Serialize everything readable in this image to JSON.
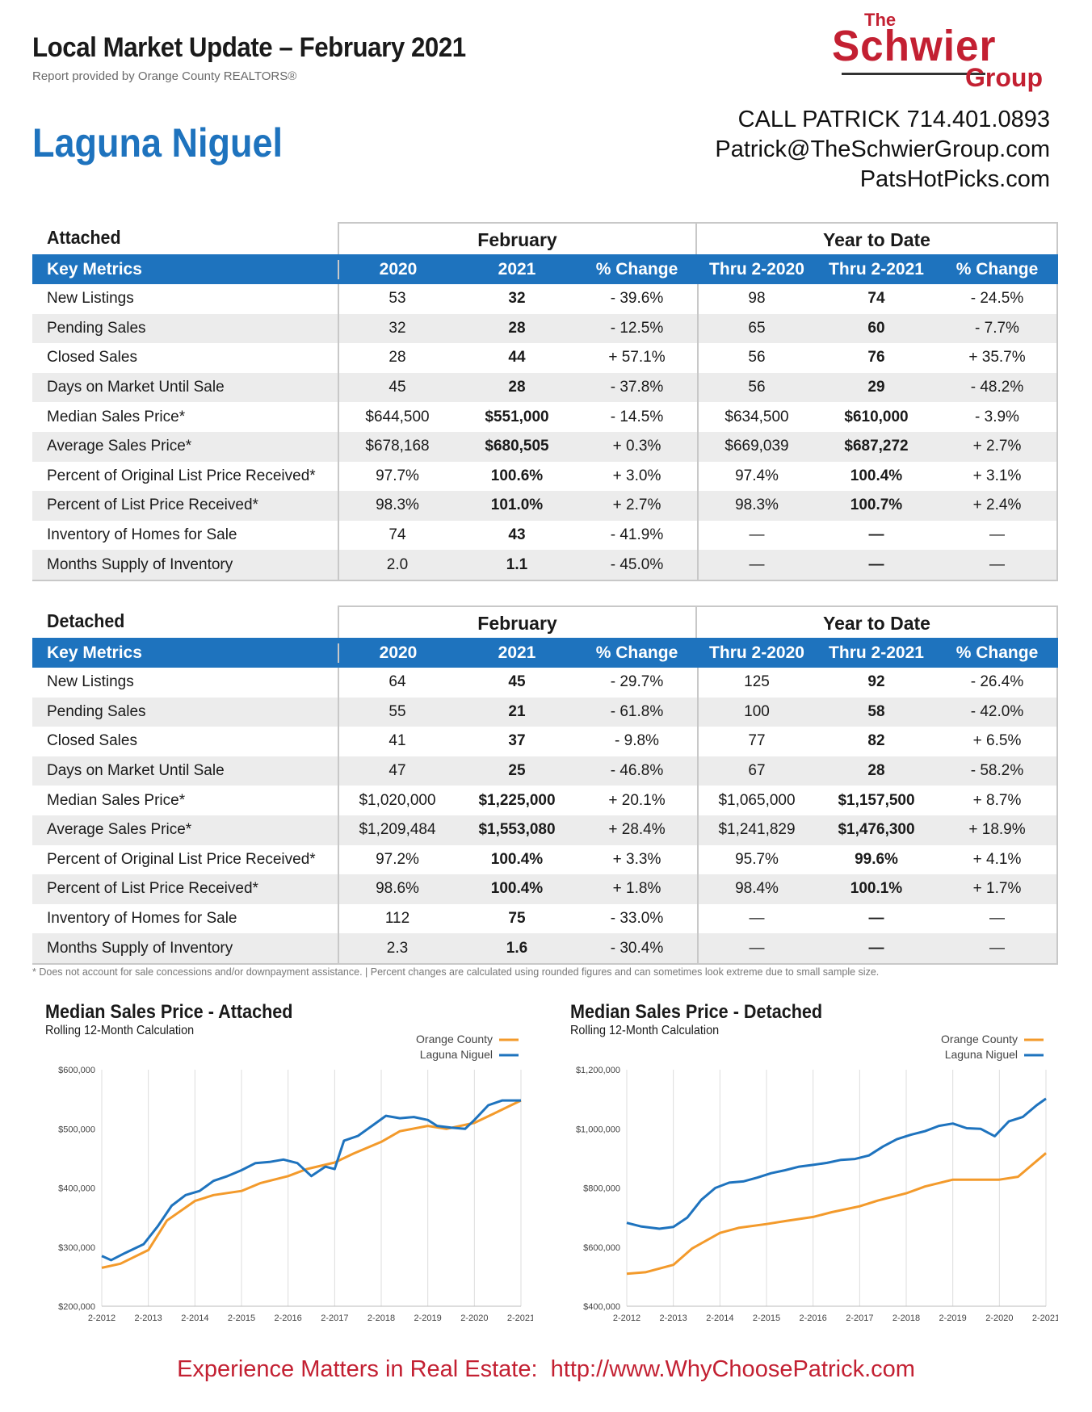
{
  "header": {
    "title": "Local Market Update – February 2021",
    "subtitle": "Report provided by Orange County REALTORS®",
    "city": "Laguna Niguel",
    "logo": {
      "the": "The",
      "name": "Schwier",
      "group": "Group"
    },
    "contact": [
      "CALL PATRICK 714.401.0893",
      "Patrick@TheSchwierGroup.com",
      "PatsHotPicks.com"
    ]
  },
  "tables": [
    {
      "section": "Attached",
      "group_feb": "February",
      "group_ytd": "Year to Date",
      "columns": [
        "Key Metrics",
        "2020",
        "2021",
        "% Change",
        "Thru 2-2020",
        "Thru 2-2021",
        "% Change"
      ],
      "rows": [
        [
          "New Listings",
          "53",
          "32",
          "- 39.6%",
          "98",
          "74",
          "- 24.5%"
        ],
        [
          "Pending Sales",
          "32",
          "28",
          "- 12.5%",
          "65",
          "60",
          "- 7.7%"
        ],
        [
          "Closed Sales",
          "28",
          "44",
          "+ 57.1%",
          "56",
          "76",
          "+ 35.7%"
        ],
        [
          "Days on Market Until Sale",
          "45",
          "28",
          "- 37.8%",
          "56",
          "29",
          "- 48.2%"
        ],
        [
          "Median Sales Price*",
          "$644,500",
          "$551,000",
          "- 14.5%",
          "$634,500",
          "$610,000",
          "- 3.9%"
        ],
        [
          "Average Sales Price*",
          "$678,168",
          "$680,505",
          "+ 0.3%",
          "$669,039",
          "$687,272",
          "+ 2.7%"
        ],
        [
          "Percent of Original List Price Received*",
          "97.7%",
          "100.6%",
          "+ 3.0%",
          "97.4%",
          "100.4%",
          "+ 3.1%"
        ],
        [
          "Percent of List Price Received*",
          "98.3%",
          "101.0%",
          "+ 2.7%",
          "98.3%",
          "100.7%",
          "+ 2.4%"
        ],
        [
          "Inventory of Homes for Sale",
          "74",
          "43",
          "- 41.9%",
          "—",
          "—",
          "—"
        ],
        [
          "Months Supply of Inventory",
          "2.0",
          "1.1",
          "- 45.0%",
          "—",
          "—",
          "—"
        ]
      ]
    },
    {
      "section": "Detached",
      "group_feb": "February",
      "group_ytd": "Year to Date",
      "columns": [
        "Key Metrics",
        "2020",
        "2021",
        "% Change",
        "Thru 2-2020",
        "Thru 2-2021",
        "% Change"
      ],
      "rows": [
        [
          "New Listings",
          "64",
          "45",
          "- 29.7%",
          "125",
          "92",
          "- 26.4%"
        ],
        [
          "Pending Sales",
          "55",
          "21",
          "- 61.8%",
          "100",
          "58",
          "- 42.0%"
        ],
        [
          "Closed Sales",
          "41",
          "37",
          "- 9.8%",
          "77",
          "82",
          "+ 6.5%"
        ],
        [
          "Days on Market Until Sale",
          "47",
          "25",
          "- 46.8%",
          "67",
          "28",
          "- 58.2%"
        ],
        [
          "Median Sales Price*",
          "$1,020,000",
          "$1,225,000",
          "+ 20.1%",
          "$1,065,000",
          "$1,157,500",
          "+ 8.7%"
        ],
        [
          "Average Sales Price*",
          "$1,209,484",
          "$1,553,080",
          "+ 28.4%",
          "$1,241,829",
          "$1,476,300",
          "+ 18.9%"
        ],
        [
          "Percent of Original List Price Received*",
          "97.2%",
          "100.4%",
          "+ 3.3%",
          "95.7%",
          "99.6%",
          "+ 4.1%"
        ],
        [
          "Percent of List Price Received*",
          "98.6%",
          "100.4%",
          "+ 1.8%",
          "98.4%",
          "100.1%",
          "+ 1.7%"
        ],
        [
          "Inventory of Homes for Sale",
          "112",
          "75",
          "- 33.0%",
          "—",
          "—",
          "—"
        ],
        [
          "Months Supply of Inventory",
          "2.3",
          "1.6",
          "- 30.4%",
          "—",
          "—",
          "—"
        ]
      ]
    }
  ],
  "footnote": "* Does not account for sale concessions and/or downpayment assistance.  |  Percent changes are calculated using rounded figures and can sometimes look extreme due to small sample size.",
  "chart_data": [
    {
      "type": "line",
      "title": "Median Sales Price - Attached",
      "subtitle": "Rolling 12-Month Calculation",
      "x_ticks": [
        "2-2012",
        "2-2013",
        "2-2014",
        "2-2015",
        "2-2016",
        "2-2017",
        "2-2018",
        "2-2019",
        "2-2020",
        "2-2021"
      ],
      "y_ticks": [
        "$200,000",
        "$300,000",
        "$400,000",
        "$500,000",
        "$600,000"
      ],
      "ylim": [
        200000,
        600000
      ],
      "legend_position": "top-right",
      "colors": {
        "Orange County": "#f39a2b",
        "Laguna Niguel": "#1e73be"
      },
      "series": [
        {
          "name": "Orange County",
          "x": [
            2012.1,
            2012.5,
            2013.1,
            2013.5,
            2014.1,
            2014.5,
            2015.1,
            2015.5,
            2016.1,
            2016.5,
            2017.1,
            2017.5,
            2018.1,
            2018.5,
            2019.1,
            2019.5,
            2020.1,
            2020.5,
            2021.1
          ],
          "values": [
            265000,
            272000,
            295000,
            345000,
            378000,
            388000,
            395000,
            408000,
            420000,
            432000,
            443000,
            458000,
            478000,
            496000,
            505000,
            500000,
            510000,
            525000,
            548000
          ]
        },
        {
          "name": "Laguna Niguel",
          "x": [
            2012.1,
            2012.3,
            2012.6,
            2013.0,
            2013.3,
            2013.6,
            2013.9,
            2014.2,
            2014.5,
            2014.8,
            2015.1,
            2015.4,
            2015.7,
            2016.0,
            2016.3,
            2016.6,
            2016.9,
            2017.1,
            2017.3,
            2017.6,
            2017.9,
            2018.2,
            2018.5,
            2018.8,
            2019.1,
            2019.3,
            2019.6,
            2019.9,
            2020.1,
            2020.4,
            2020.7,
            2021.1
          ],
          "values": [
            285000,
            278000,
            290000,
            305000,
            335000,
            370000,
            388000,
            395000,
            412000,
            420000,
            430000,
            442000,
            444000,
            448000,
            442000,
            420000,
            436000,
            432000,
            480000,
            488000,
            505000,
            522000,
            518000,
            520000,
            515000,
            505000,
            502000,
            500000,
            515000,
            540000,
            548000,
            548000
          ]
        }
      ]
    },
    {
      "type": "line",
      "title": "Median Sales Price - Detached",
      "subtitle": "Rolling 12-Month Calculation",
      "x_ticks": [
        "2-2012",
        "2-2013",
        "2-2014",
        "2-2015",
        "2-2016",
        "2-2017",
        "2-2018",
        "2-2019",
        "2-2020",
        "2-2021"
      ],
      "y_ticks": [
        "$400,000",
        "$600,000",
        "$800,000",
        "$1,000,000",
        "$1,200,000"
      ],
      "ylim": [
        400000,
        1200000
      ],
      "legend_position": "top-right",
      "colors": {
        "Orange County": "#f39a2b",
        "Laguna Niguel": "#1e73be"
      },
      "series": [
        {
          "name": "Orange County",
          "x": [
            2012.1,
            2012.5,
            2013.1,
            2013.5,
            2014.1,
            2014.5,
            2015.1,
            2015.5,
            2016.1,
            2016.5,
            2017.1,
            2017.5,
            2018.1,
            2018.5,
            2019.1,
            2019.5,
            2020.1,
            2020.5,
            2021.1
          ],
          "values": [
            510000,
            515000,
            540000,
            595000,
            648000,
            665000,
            678000,
            688000,
            702000,
            718000,
            738000,
            758000,
            782000,
            805000,
            828000,
            828000,
            828000,
            838000,
            918000
          ]
        },
        {
          "name": "Laguna Niguel",
          "x": [
            2012.1,
            2012.4,
            2012.8,
            2013.1,
            2013.4,
            2013.7,
            2014.0,
            2014.3,
            2014.6,
            2014.9,
            2015.2,
            2015.5,
            2015.8,
            2016.1,
            2016.4,
            2016.7,
            2017.0,
            2017.3,
            2017.6,
            2017.9,
            2018.2,
            2018.5,
            2018.8,
            2019.1,
            2019.4,
            2019.7,
            2020.0,
            2020.3,
            2020.6,
            2020.9,
            2021.1
          ],
          "values": [
            682000,
            670000,
            662000,
            668000,
            700000,
            760000,
            800000,
            818000,
            822000,
            835000,
            850000,
            860000,
            872000,
            878000,
            885000,
            895000,
            898000,
            910000,
            940000,
            965000,
            980000,
            992000,
            1010000,
            1018000,
            1002000,
            1000000,
            975000,
            1025000,
            1040000,
            1080000,
            1102000
          ]
        }
      ]
    }
  ],
  "tagline": "Experience Matters in Real Estate:  http://www.WhyChoosePatrick.com"
}
